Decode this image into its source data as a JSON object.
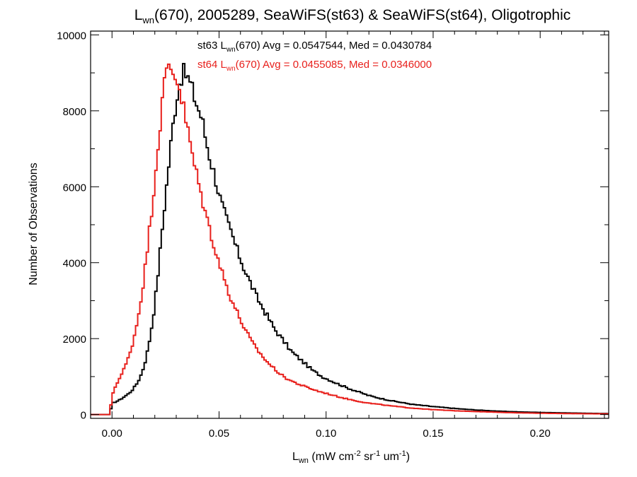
{
  "chart_data": {
    "type": "line",
    "title": {
      "prefix": "L",
      "sub": "wn",
      "rest": "(670), 2005289, SeaWiFS(st63) & SeaWiFS(st64), Oligotrophic"
    },
    "xlabel": {
      "main": "L",
      "sub": "wn",
      "p1": " (mW cm",
      "s1": "-2",
      "p2": " sr",
      "s2": "-1",
      "p3": " um",
      "s3": "-1",
      "p4": ")"
    },
    "ylabel": "Number of Observations",
    "xlim": [
      -0.01,
      0.232
    ],
    "ylim": [
      -100,
      10100
    ],
    "x_ticks": [
      "0.00",
      "0.05",
      "0.10",
      "0.15",
      "0.20"
    ],
    "x_tick_values": [
      0.0,
      0.05,
      0.1,
      0.15,
      0.2
    ],
    "y_ticks": [
      "0",
      "2000",
      "4000",
      "6000",
      "8000",
      "10000"
    ],
    "y_tick_values": [
      0,
      2000,
      4000,
      6000,
      8000,
      10000
    ],
    "grid": false,
    "legend_placement": "top-center",
    "step_width": 0.001,
    "series": [
      {
        "legend": {
          "a": "st63 L",
          "sub": "wn",
          "b": "(670) Avg = 0.0547544, Med = 0.0430784"
        },
        "color": "#000000",
        "points": [
          [
            -0.01,
            0
          ],
          [
            -0.001,
            0
          ],
          [
            0.0,
            300
          ],
          [
            0.002,
            340
          ],
          [
            0.004,
            400
          ],
          [
            0.006,
            480
          ],
          [
            0.008,
            560
          ],
          [
            0.01,
            680
          ],
          [
            0.012,
            850
          ],
          [
            0.014,
            1100
          ],
          [
            0.016,
            1500
          ],
          [
            0.018,
            2100
          ],
          [
            0.02,
            2900
          ],
          [
            0.022,
            4000
          ],
          [
            0.024,
            5200
          ],
          [
            0.026,
            6300
          ],
          [
            0.028,
            7400
          ],
          [
            0.03,
            8300
          ],
          [
            0.032,
            8900
          ],
          [
            0.034,
            9000
          ],
          [
            0.036,
            8800
          ],
          [
            0.038,
            8450
          ],
          [
            0.04,
            8100
          ],
          [
            0.042,
            7800
          ],
          [
            0.044,
            7200
          ],
          [
            0.046,
            6700
          ],
          [
            0.048,
            6300
          ],
          [
            0.05,
            5800
          ],
          [
            0.052,
            5400
          ],
          [
            0.054,
            5050
          ],
          [
            0.056,
            4750
          ],
          [
            0.058,
            4400
          ],
          [
            0.06,
            4100
          ],
          [
            0.062,
            3800
          ],
          [
            0.064,
            3550
          ],
          [
            0.066,
            3300
          ],
          [
            0.068,
            3050
          ],
          [
            0.07,
            2850
          ],
          [
            0.072,
            2650
          ],
          [
            0.074,
            2450
          ],
          [
            0.076,
            2250
          ],
          [
            0.078,
            2100
          ],
          [
            0.08,
            1950
          ],
          [
            0.082,
            1800
          ],
          [
            0.084,
            1650
          ],
          [
            0.086,
            1550
          ],
          [
            0.088,
            1450
          ],
          [
            0.09,
            1350
          ],
          [
            0.092,
            1250
          ],
          [
            0.094,
            1150
          ],
          [
            0.096,
            1080
          ],
          [
            0.098,
            1000
          ],
          [
            0.1,
            950
          ],
          [
            0.105,
            820
          ],
          [
            0.11,
            700
          ],
          [
            0.115,
            600
          ],
          [
            0.12,
            500
          ],
          [
            0.125,
            430
          ],
          [
            0.13,
            370
          ],
          [
            0.135,
            320
          ],
          [
            0.14,
            270
          ],
          [
            0.145,
            240
          ],
          [
            0.15,
            210
          ],
          [
            0.16,
            160
          ],
          [
            0.17,
            120
          ],
          [
            0.18,
            90
          ],
          [
            0.19,
            70
          ],
          [
            0.2,
            55
          ],
          [
            0.21,
            45
          ],
          [
            0.22,
            35
          ],
          [
            0.232,
            25
          ]
        ]
      },
      {
        "legend": {
          "a": "st64 L",
          "sub": "wn",
          "b": "(670) Avg = 0.0455085, Med = 0.0346000"
        },
        "color": "#e8201c",
        "points": [
          [
            -0.01,
            0
          ],
          [
            -0.001,
            0
          ],
          [
            0.0,
            500
          ],
          [
            0.002,
            800
          ],
          [
            0.004,
            1000
          ],
          [
            0.006,
            1250
          ],
          [
            0.008,
            1550
          ],
          [
            0.01,
            1950
          ],
          [
            0.012,
            2500
          ],
          [
            0.014,
            3200
          ],
          [
            0.016,
            4100
          ],
          [
            0.018,
            5100
          ],
          [
            0.02,
            6200
          ],
          [
            0.022,
            7400
          ],
          [
            0.024,
            8500
          ],
          [
            0.026,
            9200
          ],
          [
            0.028,
            9100
          ],
          [
            0.03,
            8900
          ],
          [
            0.032,
            8500
          ],
          [
            0.034,
            7900
          ],
          [
            0.036,
            7300
          ],
          [
            0.038,
            6700
          ],
          [
            0.04,
            6200
          ],
          [
            0.042,
            5700
          ],
          [
            0.044,
            5250
          ],
          [
            0.046,
            4800
          ],
          [
            0.048,
            4400
          ],
          [
            0.05,
            4000
          ],
          [
            0.052,
            3650
          ],
          [
            0.054,
            3300
          ],
          [
            0.056,
            3000
          ],
          [
            0.058,
            2750
          ],
          [
            0.06,
            2500
          ],
          [
            0.062,
            2250
          ],
          [
            0.064,
            2050
          ],
          [
            0.066,
            1850
          ],
          [
            0.068,
            1700
          ],
          [
            0.07,
            1550
          ],
          [
            0.072,
            1420
          ],
          [
            0.074,
            1300
          ],
          [
            0.076,
            1200
          ],
          [
            0.078,
            1100
          ],
          [
            0.08,
            1000
          ],
          [
            0.084,
            880
          ],
          [
            0.088,
            780
          ],
          [
            0.092,
            700
          ],
          [
            0.096,
            620
          ],
          [
            0.1,
            560
          ],
          [
            0.105,
            480
          ],
          [
            0.11,
            410
          ],
          [
            0.115,
            350
          ],
          [
            0.12,
            300
          ],
          [
            0.13,
            230
          ],
          [
            0.14,
            170
          ],
          [
            0.15,
            130
          ],
          [
            0.16,
            100
          ],
          [
            0.17,
            80
          ],
          [
            0.18,
            60
          ],
          [
            0.19,
            45
          ],
          [
            0.2,
            35
          ],
          [
            0.21,
            28
          ],
          [
            0.22,
            22
          ],
          [
            0.232,
            18
          ]
        ]
      }
    ]
  }
}
